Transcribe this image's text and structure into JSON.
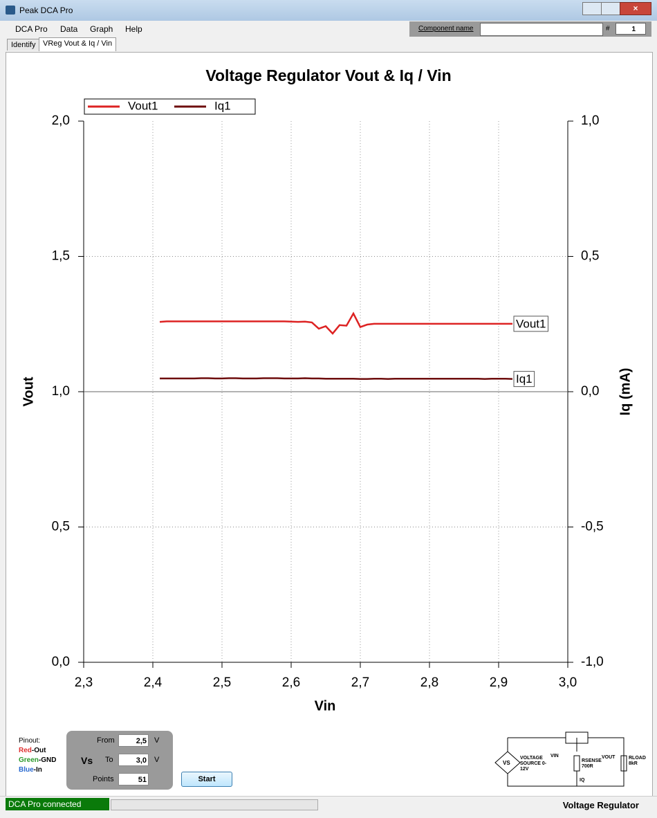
{
  "window": {
    "title": "Peak DCA Pro"
  },
  "menu": [
    "DCA Pro",
    "Data",
    "Graph",
    "Help"
  ],
  "toolbar": {
    "component_label": "Component name",
    "number_label": "#",
    "number": "1"
  },
  "tabs": [
    "Identify",
    "VReg Vout & Iq / Vin"
  ],
  "chart_data": {
    "type": "line",
    "title": "Voltage Regulator Vout & Iq / Vin",
    "x_label": "Vin",
    "y_label": "Vout",
    "y2_label": "Iq (mA)",
    "x": [
      2.41,
      2.42,
      2.43,
      2.44,
      2.45,
      2.46,
      2.47,
      2.48,
      2.49,
      2.5,
      2.51,
      2.52,
      2.53,
      2.54,
      2.55,
      2.56,
      2.57,
      2.58,
      2.59,
      2.6,
      2.61,
      2.62,
      2.63,
      2.64,
      2.65,
      2.66,
      2.67,
      2.68,
      2.69,
      2.7,
      2.71,
      2.72,
      2.73,
      2.74,
      2.75,
      2.76,
      2.77,
      2.78,
      2.79,
      2.8,
      2.81,
      2.82,
      2.83,
      2.84,
      2.85,
      2.86,
      2.87,
      2.88,
      2.89,
      2.9,
      2.91,
      2.92
    ],
    "series": [
      {
        "name": "Vout1",
        "color": "#dd2222",
        "values": [
          1.258,
          1.26,
          1.26,
          1.26,
          1.26,
          1.26,
          1.26,
          1.26,
          1.26,
          1.26,
          1.26,
          1.26,
          1.26,
          1.26,
          1.26,
          1.26,
          1.26,
          1.26,
          1.26,
          1.259,
          1.258,
          1.259,
          1.256,
          1.233,
          1.242,
          1.215,
          1.246,
          1.244,
          1.289,
          1.239,
          1.248,
          1.251,
          1.251,
          1.251,
          1.251,
          1.251,
          1.251,
          1.251,
          1.251,
          1.251,
          1.251,
          1.251,
          1.251,
          1.251,
          1.251,
          1.251,
          1.251,
          1.251,
          1.251,
          1.251,
          1.251,
          1.251
        ]
      },
      {
        "name": "Iq1",
        "color": "#6e0d0d",
        "axis": "y2",
        "values": [
          0.049,
          0.049,
          0.049,
          0.049,
          0.049,
          0.049,
          0.05,
          0.05,
          0.049,
          0.049,
          0.05,
          0.05,
          0.049,
          0.049,
          0.049,
          0.05,
          0.05,
          0.05,
          0.049,
          0.049,
          0.049,
          0.05,
          0.049,
          0.049,
          0.048,
          0.048,
          0.048,
          0.048,
          0.048,
          0.047,
          0.047,
          0.048,
          0.048,
          0.047,
          0.048,
          0.048,
          0.048,
          0.048,
          0.048,
          0.048,
          0.048,
          0.048,
          0.048,
          0.048,
          0.048,
          0.048,
          0.048,
          0.047,
          0.048,
          0.048,
          0.048,
          0.047
        ]
      }
    ],
    "xlim": [
      2.3,
      3.0
    ],
    "xticks": [
      {
        "value": 2.3,
        "label": "2,3"
      },
      {
        "value": 2.4,
        "label": "2,4"
      },
      {
        "value": 2.5,
        "label": "2,5"
      },
      {
        "value": 2.6,
        "label": "2,6"
      },
      {
        "value": 2.7,
        "label": "2,7"
      },
      {
        "value": 2.8,
        "label": "2,8"
      },
      {
        "value": 2.9,
        "label": "2,9"
      },
      {
        "value": 3.0,
        "label": "3,0"
      }
    ],
    "ylim": [
      0,
      2
    ],
    "yticks": [
      {
        "value": 0,
        "label": "0,0"
      },
      {
        "value": 0.5,
        "label": "0,5"
      },
      {
        "value": 1,
        "label": "1,0"
      },
      {
        "value": 1.5,
        "label": "1,5"
      },
      {
        "value": 2,
        "label": "2,0"
      }
    ],
    "y2lim": [
      -1,
      1
    ],
    "y2ticks": [
      {
        "value": -1,
        "label": "-1,0"
      },
      {
        "value": -0.5,
        "label": "-0,5"
      },
      {
        "value": 0,
        "label": "0,0"
      },
      {
        "value": 0.5,
        "label": "0,5"
      },
      {
        "value": 1,
        "label": "1,0"
      }
    ],
    "grid": true,
    "legend": "top-left"
  },
  "pinout": {
    "title": "Pinout:",
    "pins": [
      {
        "color": "Red",
        "role": "-Out"
      },
      {
        "color": "Green",
        "role": "-GND"
      },
      {
        "color": "Blue",
        "role": "-In"
      }
    ]
  },
  "sweep": {
    "source": "Vs",
    "fields": [
      {
        "label": "From",
        "value": "2,5",
        "unit": "V"
      },
      {
        "label": "To",
        "value": "3,0",
        "unit": "V"
      },
      {
        "label": "Points",
        "value": "51"
      }
    ]
  },
  "start": "Start",
  "schematic": {
    "vs": "VS",
    "vin": "VIN",
    "vout": "VOUT",
    "source": "VOLTAGE SOURCE 0-12V",
    "rsense": "RSENSE 700R",
    "rload": "RLOAD 8kR",
    "iq": "IQ"
  },
  "status": {
    "connection": "DCA Pro connected",
    "mode": "Voltage Regulator"
  }
}
